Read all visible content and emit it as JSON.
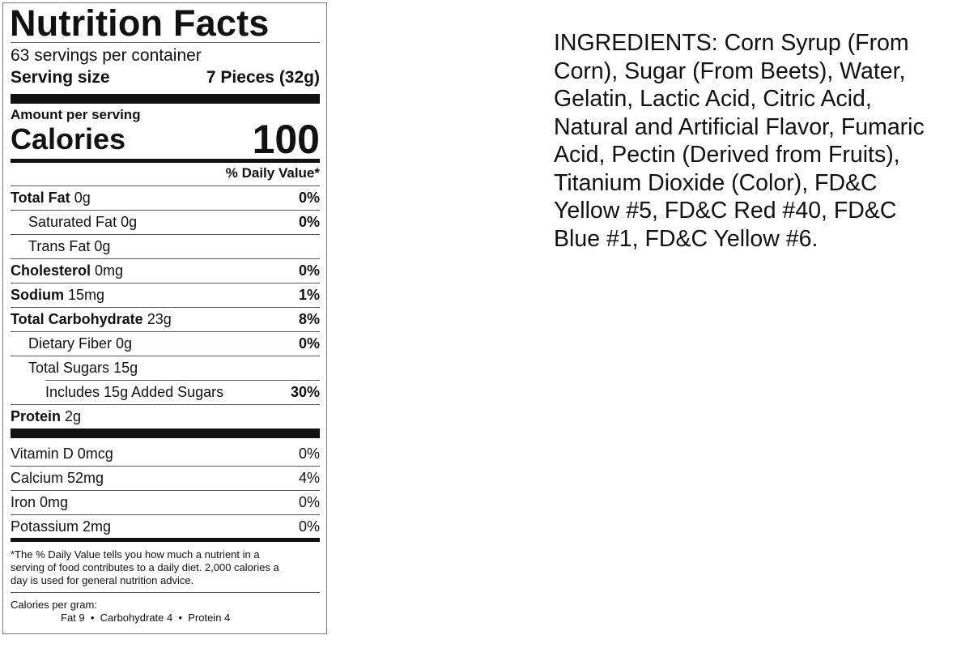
{
  "label": {
    "title": "Nutrition Facts",
    "servings_per_container": "63 servings per container",
    "serving_size_label": "Serving size",
    "serving_size_value": "7 Pieces (32g)",
    "amount_per_serving": "Amount per serving",
    "calories_label": "Calories",
    "calories_value": "100",
    "daily_value_header": "% Daily Value*",
    "nutrients": [
      {
        "name": "Total Fat",
        "amount": "0g",
        "dv": "0%"
      },
      {
        "name": "Saturated Fat",
        "amount": "0g",
        "dv": "0%"
      },
      {
        "name": "Trans Fat",
        "amount": "0g",
        "dv": ""
      },
      {
        "name": "Cholesterol",
        "amount": "0mg",
        "dv": "0%"
      },
      {
        "name": "Sodium",
        "amount": "15mg",
        "dv": "1%"
      },
      {
        "name": "Total Carbohydrate",
        "amount": "23g",
        "dv": "8%"
      },
      {
        "name": "Dietary Fiber",
        "amount": "0g",
        "dv": "0%"
      },
      {
        "name": "Total Sugars",
        "amount": "15g",
        "dv": ""
      },
      {
        "name": "Includes 15g Added Sugars",
        "amount": "",
        "dv": "30%"
      },
      {
        "name": "Protein",
        "amount": "2g",
        "dv": ""
      }
    ],
    "vitamins": [
      {
        "name": "Vitamin D 0mcg",
        "dv": "0%"
      },
      {
        "name": "Calcium 52mg",
        "dv": "4%"
      },
      {
        "name": "Iron 0mg",
        "dv": "0%"
      },
      {
        "name": "Potassium 2mg",
        "dv": "0%"
      }
    ],
    "footnote": [
      "*The % Daily Value tells you how much a nutrient in a",
      "serving of food contributes to a daily diet. 2,000 calories a",
      "day is used for general nutrition advice."
    ],
    "calories_per_gram_label": "Calories per gram:",
    "calories_per_gram": "Fat 9  •  Carbohydrate 4  •  Protein 4"
  },
  "ingredients": {
    "lines": [
      "INGREDIENTS: Corn Syrup (From",
      "Corn), Sugar (From Beets), Water,",
      "Gelatin, Lactic Acid, Citric Acid,",
      "Natural and Artificial Flavor, Fumaric",
      "Acid, Pectin (Derived from Fruits),",
      "Titanium Dioxide (Color), FD&C",
      "Yellow #5, FD&C Red #40, FD&C",
      "Blue #1, FD&C Yellow #6."
    ]
  }
}
